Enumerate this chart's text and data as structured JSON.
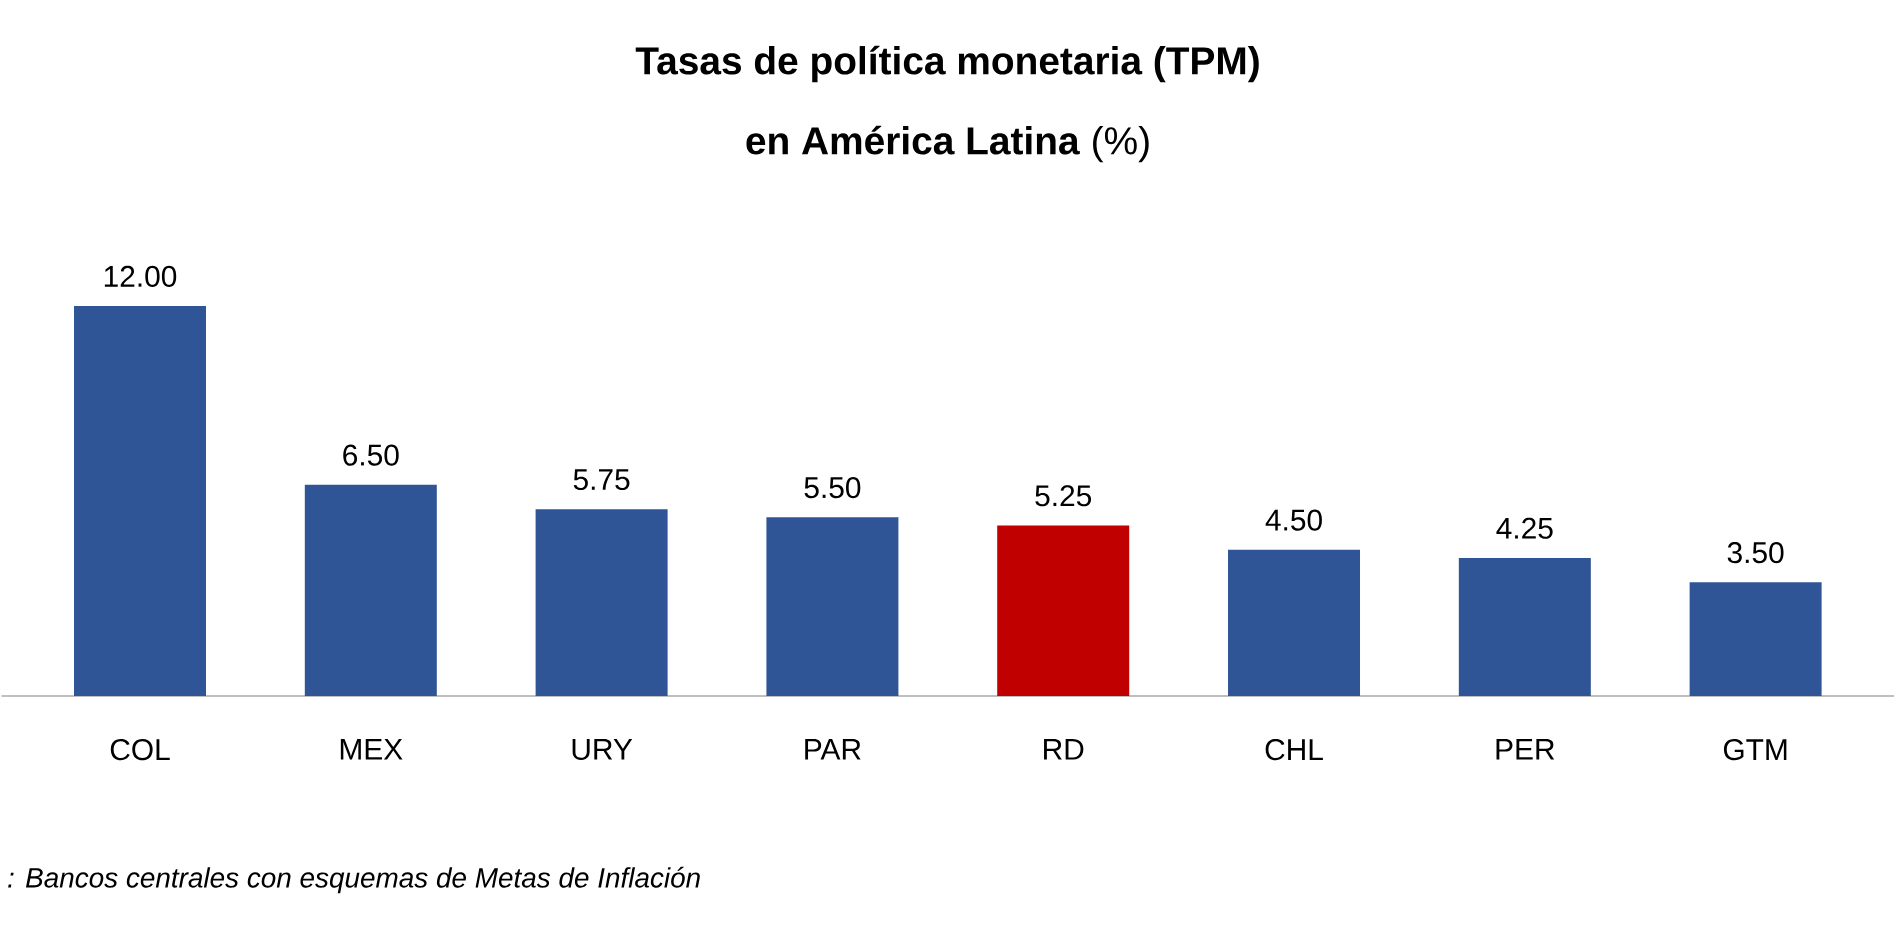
{
  "chart_data": {
    "type": "bar",
    "title": "Tasas de política monetaria (TPM)",
    "subtitle": "**en América Latina** (%)",
    "categories": [
      "COL",
      "MEX",
      "URY",
      "PAR",
      "RD",
      "CHL",
      "PER",
      "GTM"
    ],
    "values": [
      12.0,
      6.5,
      5.75,
      5.5,
      5.25,
      4.5,
      4.25,
      3.5
    ],
    "value_labels": [
      "12.00",
      "6.50",
      "5.75",
      "5.50",
      "5.25",
      "4.50",
      "4.25",
      "3.50"
    ],
    "colors": [
      "#2f5597",
      "#2f5597",
      "#2f5597",
      "#2f5597",
      "#c00000",
      "#2f5597",
      "#2f5597",
      "#2f5597"
    ],
    "annotations": [
      ": Bancos centrales con esquemas de Metas de Inflación"
    ]
  }
}
